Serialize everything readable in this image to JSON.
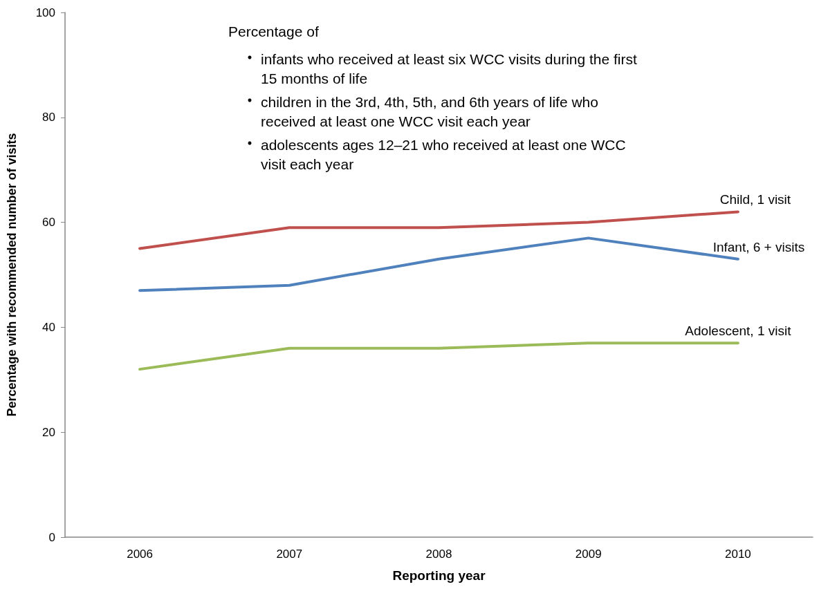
{
  "chart_data": {
    "type": "line",
    "xlabel": "Reporting year",
    "ylabel": "Percentage with recommended number of visits",
    "categories": [
      "2006",
      "2007",
      "2008",
      "2009",
      "2010"
    ],
    "series": [
      {
        "name": "Child, 1 visit",
        "color": "#c0504d",
        "values": [
          55,
          59,
          59,
          60,
          62
        ]
      },
      {
        "name": "Infant, 6 + visits",
        "color": "#4f81bd",
        "values": [
          47,
          48,
          53,
          57,
          53
        ]
      },
      {
        "name": "Adolescent, 1 visit",
        "color": "#9bbb59",
        "values": [
          32,
          36,
          36,
          37,
          37
        ]
      }
    ],
    "ylim": [
      0,
      100
    ],
    "yticks": [
      0,
      20,
      40,
      60,
      80,
      100
    ],
    "grid": false,
    "legend": false,
    "marker": "none",
    "line_style": "solid",
    "annotations": [
      "Percentage of",
      "infants who received at least six WCC visits during the first 15 months of life",
      "children in the 3rd, 4th, 5th, and 6th years of life who received at least one WCC visit each year",
      "adolescents ages 12–21 who received at least one WCC visit each year"
    ]
  }
}
